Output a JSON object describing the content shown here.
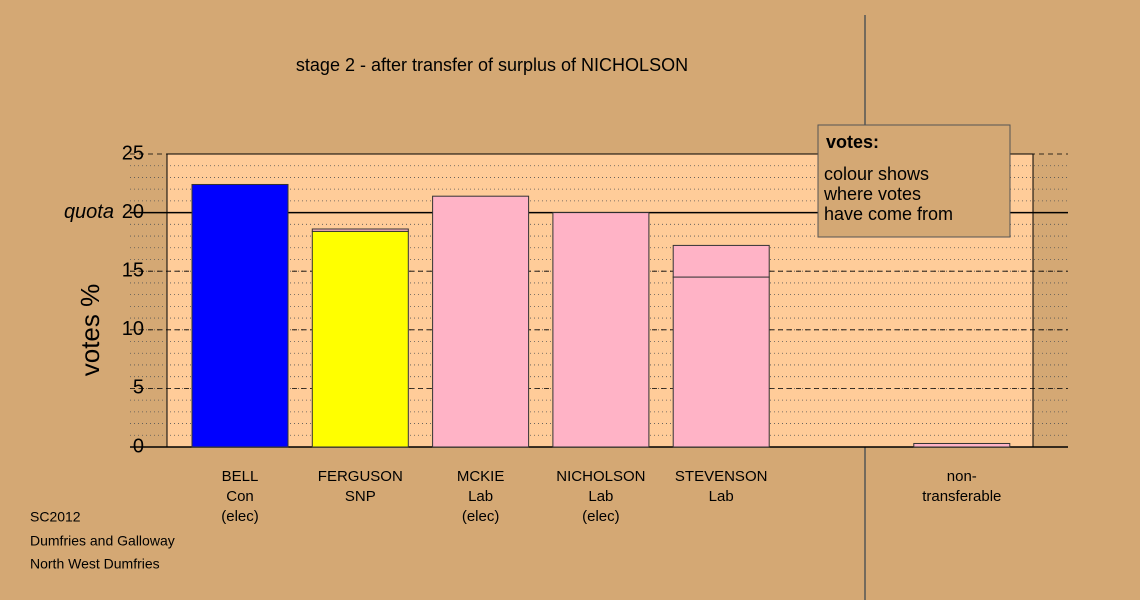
{
  "chart_data": {
    "type": "stacked_bar",
    "title": "stage 2 - after transfer of surplus of NICHOLSON",
    "y_label": "votes %",
    "categories": [
      [
        "BELL",
        "Con",
        "(elec)"
      ],
      [
        "FERGUSON",
        "SNP"
      ],
      [
        "MCKIE",
        "Lab",
        "(elec)"
      ],
      [
        "NICHOLSON",
        "Lab",
        "(elec)"
      ],
      [
        "STEVENSON",
        "Lab"
      ],
      [
        "non-",
        "transferable"
      ]
    ],
    "series": [
      {
        "colors": [
          "#0000ff",
          "#ffff00",
          "#ffb3c6",
          "#ffb3c6",
          "#ffb3c6",
          "#ffb3c6"
        ],
        "values": [
          22.4,
          18.4,
          21.4,
          20.0,
          14.5,
          0
        ]
      },
      {
        "colors": [
          "#ffb3c6",
          "#ffb3c6",
          "#ffb3c6",
          "#ffb3c6",
          "#ffb3c6",
          "#ffb3c6"
        ],
        "values": [
          0,
          0.2,
          0,
          0,
          2.7,
          0.3
        ]
      }
    ],
    "ylim": [
      0,
      25
    ],
    "yticks": [
      0,
      5,
      10,
      15,
      20,
      25
    ],
    "quota": 20,
    "quota_label": "quota",
    "grid": true,
    "legend": {
      "title": "votes:",
      "lines": [
        "colour shows",
        "where votes",
        "have come from"
      ]
    },
    "footer": [
      "SC2012",
      "Dumfries and Galloway",
      "North West Dumfries"
    ]
  }
}
